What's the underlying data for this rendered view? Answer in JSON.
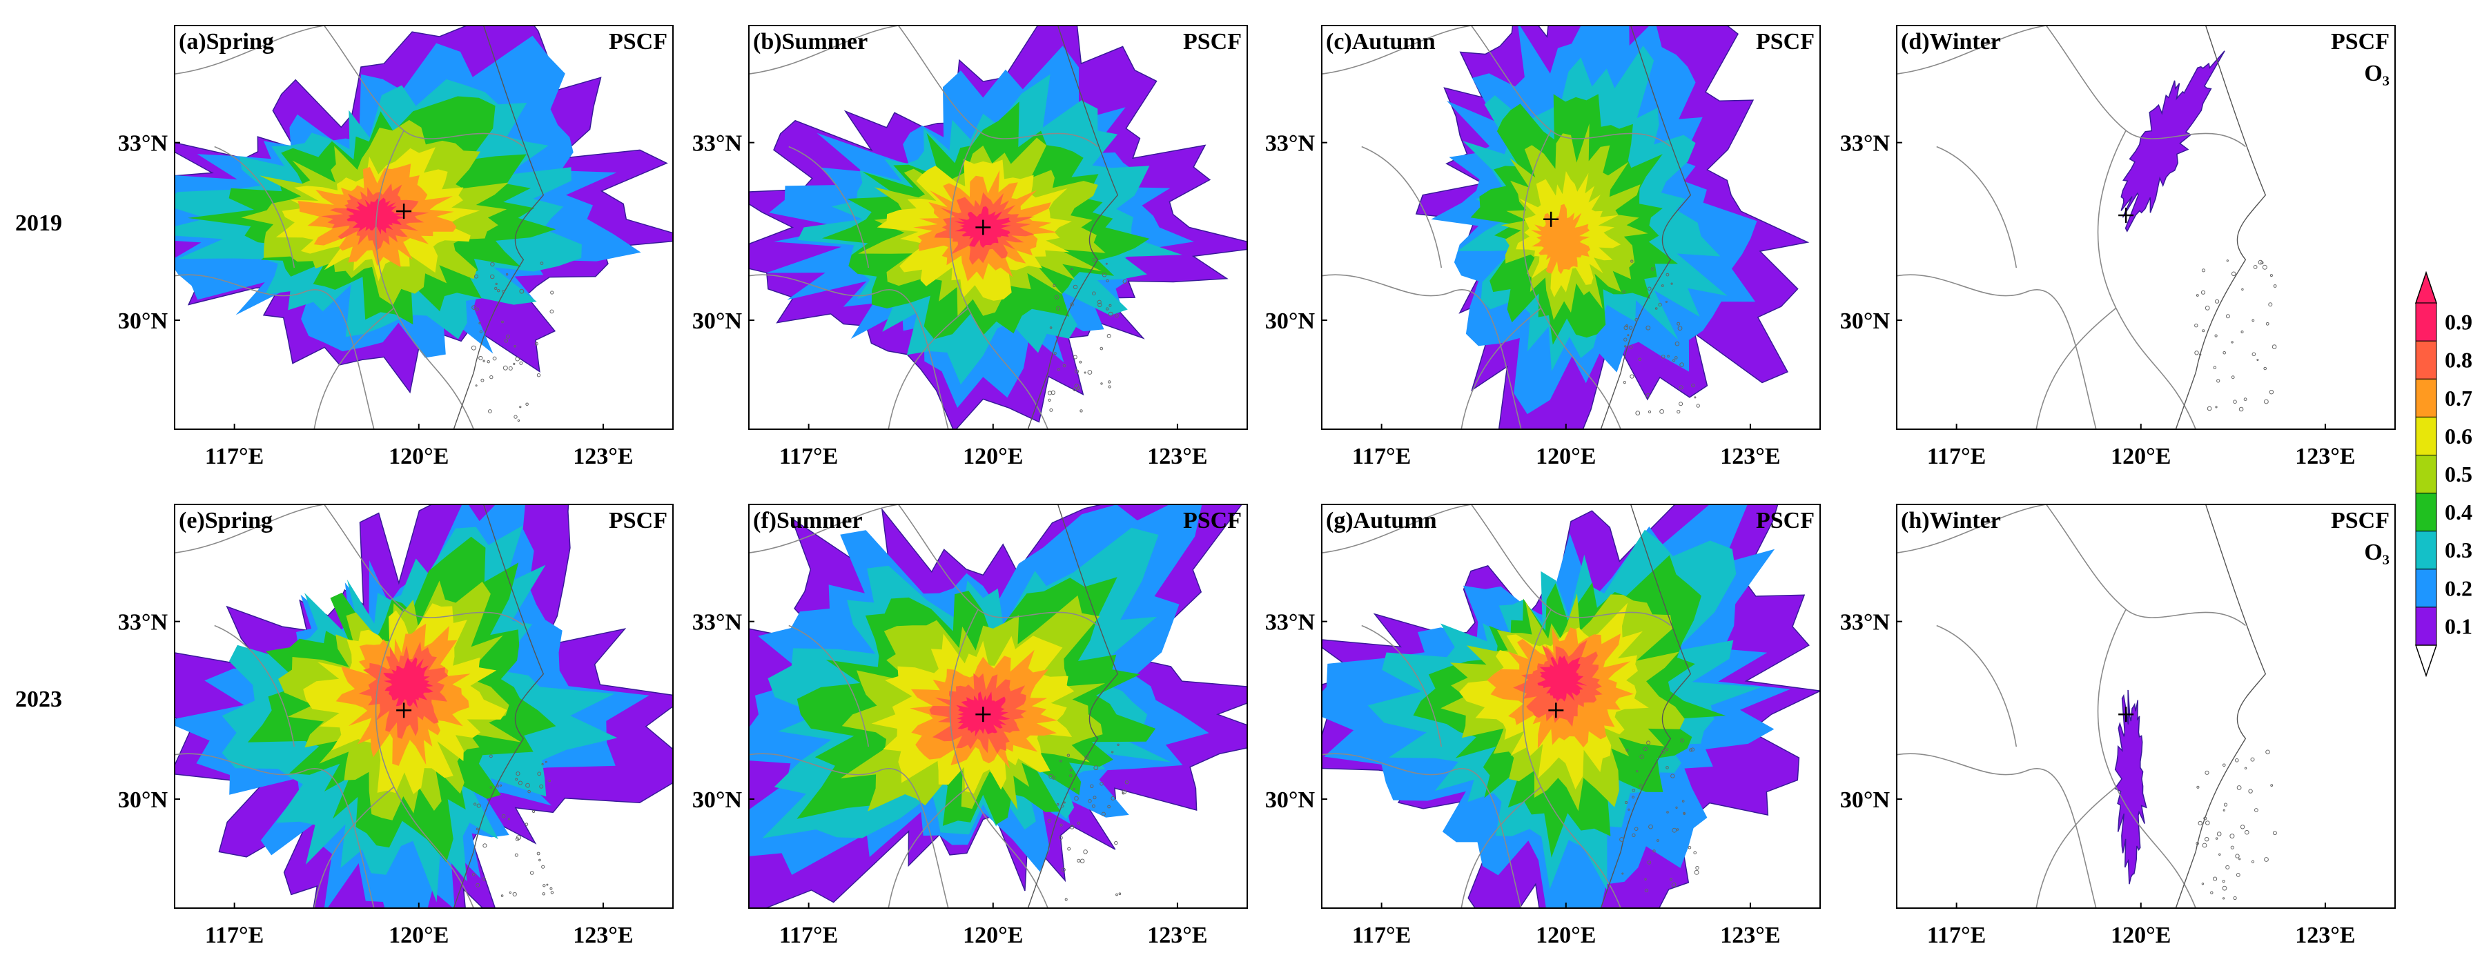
{
  "figure": {
    "rows": [
      {
        "label": "2019"
      },
      {
        "label": "2023"
      }
    ],
    "panels": [
      {
        "id": "a",
        "title": "(a)Spring",
        "method": "PSCF",
        "pollutant": ""
      },
      {
        "id": "b",
        "title": "(b)Summer",
        "method": "PSCF",
        "pollutant": ""
      },
      {
        "id": "c",
        "title": "(c)Autumn",
        "method": "PSCF",
        "pollutant": ""
      },
      {
        "id": "d",
        "title": "(d)Winter",
        "method": "PSCF",
        "pollutant": "O₃"
      },
      {
        "id": "e",
        "title": "(e)Spring",
        "method": "PSCF",
        "pollutant": ""
      },
      {
        "id": "f",
        "title": "(f)Summer",
        "method": "PSCF",
        "pollutant": ""
      },
      {
        "id": "g",
        "title": "(g)Autumn",
        "method": "PSCF",
        "pollutant": ""
      },
      {
        "id": "h",
        "title": "(h)Winter",
        "method": "PSCF",
        "pollutant": "O₃"
      }
    ],
    "x_ticks": [
      "117°E",
      "120°E",
      "123°E"
    ],
    "y_ticks": [
      "33°N",
      "30°N"
    ],
    "colorbar": {
      "ticks": [
        "0.9",
        "0.8",
        "0.7",
        "0.6",
        "0.5",
        "0.4",
        "0.3",
        "0.2",
        "0.1"
      ],
      "colors": [
        "#ff1e64",
        "#ff6040",
        "#ff9a20",
        "#e8e60a",
        "#a6d60e",
        "#20c020",
        "#14c0c8",
        "#1e96ff",
        "#8a14e8"
      ]
    }
  }
}
